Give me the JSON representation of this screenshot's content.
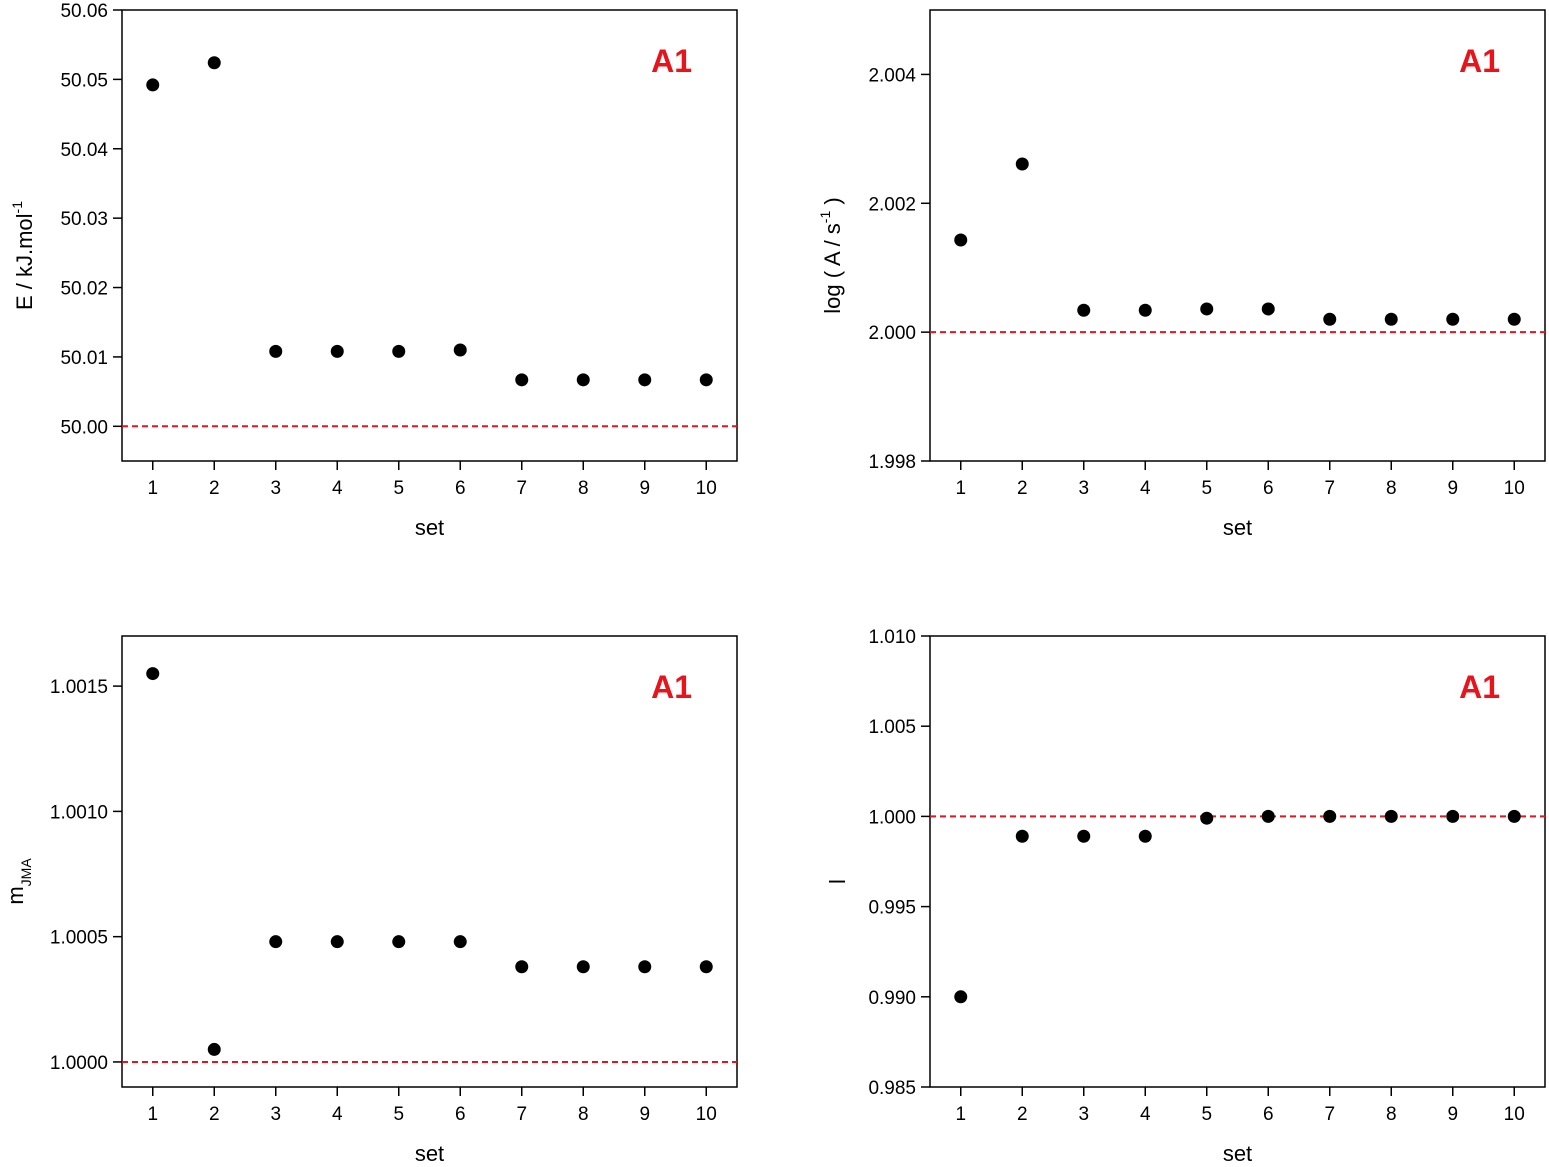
{
  "chart_data": [
    {
      "type": "scatter",
      "annotation": "A1",
      "annotation_color": "#e8141b",
      "xlabel": "set",
      "ylabel": "E  /  kJ.mol",
      "ylabel_superscript": "-1",
      "x": [
        1,
        2,
        3,
        4,
        5,
        6,
        7,
        8,
        9,
        10
      ],
      "values": [
        50.0492,
        50.0524,
        50.0108,
        50.0108,
        50.0108,
        50.011,
        50.0067,
        50.0067,
        50.0067,
        50.0067
      ],
      "color": "#000000",
      "reference_line": 50.0,
      "reference_color": "#e8141b",
      "xlim": [
        0.5,
        10.5
      ],
      "xticks": [
        1,
        2,
        3,
        4,
        5,
        6,
        7,
        8,
        9,
        10
      ],
      "ylim": [
        49.995,
        50.06
      ],
      "yticks": [
        {
          "value": 50.0,
          "label": "50.00"
        },
        50.01,
        50.02,
        50.03,
        50.04,
        50.05,
        50.06
      ]
    },
    {
      "type": "scatter",
      "annotation": "A1",
      "annotation_color": "#e8141b",
      "xlabel": "set",
      "ylabel": "log ( A / s",
      "ylabel_superscript": "-1",
      "ylabel_suffix": " )",
      "x": [
        1,
        2,
        3,
        4,
        5,
        6,
        7,
        8,
        9,
        10
      ],
      "values": [
        2.00143,
        2.00261,
        2.00034,
        2.00034,
        2.00036,
        2.00036,
        2.0002,
        2.0002,
        2.0002,
        2.0002
      ],
      "color": "#000000",
      "reference_line": 2.0,
      "reference_color": "#e8141b",
      "xlim": [
        0.5,
        10.5
      ],
      "xticks": [
        1,
        2,
        3,
        4,
        5,
        6,
        7,
        8,
        9,
        10
      ],
      "ylim": [
        1.998,
        2.005
      ],
      "yticks": [
        1.998,
        {
          "value": 2.0,
          "label": "2.000"
        },
        2.002,
        2.004
      ]
    },
    {
      "type": "scatter",
      "annotation": "A1",
      "annotation_color": "#e8141b",
      "xlabel": "set",
      "ylabel": "m",
      "ylabel_subscript": "JMA",
      "x": [
        1,
        2,
        3,
        4,
        5,
        6,
        7,
        8,
        9,
        10
      ],
      "values": [
        1.00155,
        1.00005,
        1.00048,
        1.00048,
        1.00048,
        1.00048,
        1.00038,
        1.00038,
        1.00038,
        1.00038
      ],
      "color": "#000000",
      "reference_line": 1.0,
      "reference_color": "#e8141b",
      "xlim": [
        0.5,
        10.5
      ],
      "xticks": [
        1,
        2,
        3,
        4,
        5,
        6,
        7,
        8,
        9,
        10
      ],
      "ylim": [
        0.9999,
        1.0017
      ],
      "yticks": [
        {
          "value": 1.0,
          "label": "1.0000"
        },
        1.0005,
        {
          "value": 1.001,
          "label": "1.0010"
        },
        1.0015
      ]
    },
    {
      "type": "scatter",
      "annotation": "A1",
      "annotation_color": "#e8141b",
      "xlabel": "set",
      "ylabel": "l",
      "x": [
        1,
        2,
        3,
        4,
        5,
        6,
        7,
        8,
        9,
        10
      ],
      "values": [
        0.99,
        0.9989,
        0.9989,
        0.9989,
        0.9999,
        1.0,
        1.0,
        1.0,
        1.0,
        1.0
      ],
      "color": "#000000",
      "reference_line": 1.0,
      "reference_color": "#e8141b",
      "xlim": [
        0.5,
        10.5
      ],
      "xticks": [
        1,
        2,
        3,
        4,
        5,
        6,
        7,
        8,
        9,
        10
      ],
      "ylim": [
        0.985,
        1.01
      ],
      "yticks": [
        0.985,
        {
          "value": 0.99,
          "label": "0.990"
        },
        0.995,
        {
          "value": 1.0,
          "label": "1.000"
        },
        1.005,
        {
          "value": 1.01,
          "label": "1.010"
        }
      ]
    }
  ]
}
